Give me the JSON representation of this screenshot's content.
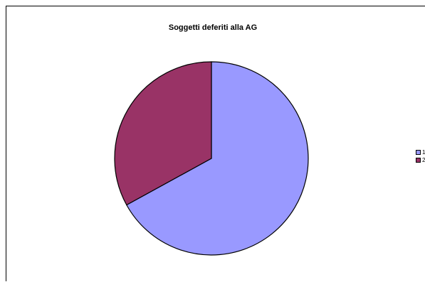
{
  "chart_data": {
    "type": "pie",
    "title": "Soggetti deferiti alla AG",
    "categories": [
      "1",
      "2"
    ],
    "values": [
      67,
      33
    ],
    "colors": [
      "#9999ff",
      "#993366"
    ],
    "legend": "right"
  }
}
